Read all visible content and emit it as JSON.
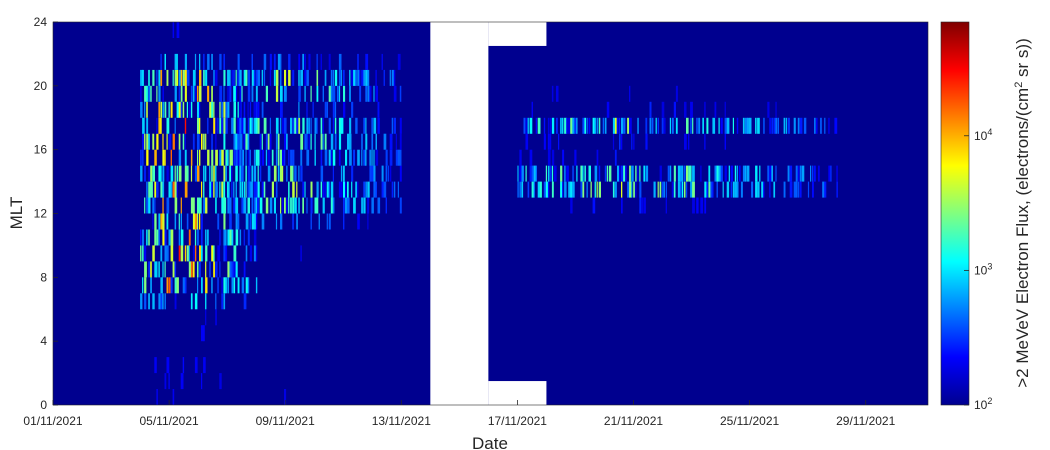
{
  "chart_data": {
    "type": "heatmap",
    "title": "",
    "xlabel": "Date",
    "ylabel": "MLT",
    "x_ticks": [
      "01/11/2021",
      "05/11/2021",
      "09/11/2021",
      "13/11/2021",
      "17/11/2021",
      "21/11/2021",
      "25/11/2021",
      "29/11/2021"
    ],
    "x_range": [
      "01/11/2021",
      "01/12/2021"
    ],
    "y_ticks": [
      0,
      4,
      8,
      12,
      16,
      20,
      24
    ],
    "ylim": [
      0,
      24
    ],
    "no_data_intervals": [
      {
        "start": "14/11/2021",
        "end": "16/11/2021"
      },
      {
        "start": "16/11/2021",
        "end": "18/11/2021",
        "mlt_ranges": [
          [
            0,
            1.5
          ],
          [
            22.5,
            24
          ]
        ]
      }
    ],
    "colorbar": {
      "label_parts": [
        ">2 MeVeV Electron Flux, (electrons/(cm",
        "2",
        " sr s))"
      ],
      "scale": "log",
      "range": [
        100,
        70000
      ],
      "ticks": [
        {
          "value": 100,
          "base": "10",
          "exp": "2"
        },
        {
          "value": 1000,
          "base": "10",
          "exp": "3"
        },
        {
          "value": 10000,
          "base": "10",
          "exp": "4"
        }
      ],
      "colormap": "jet",
      "colors": [
        "#00008f",
        "#0000ff",
        "#0080ff",
        "#00ffff",
        "#80ff80",
        "#ffff00",
        "#ff8000",
        "#ff0000",
        "#800000"
      ]
    },
    "activity_profiles": [
      {
        "start": "04/11/2021",
        "end": "08/11/2021",
        "mlt_peaks": [
          8,
          10,
          12,
          14,
          16,
          18,
          20
        ],
        "peak_flux": 70000
      },
      {
        "start": "07/11/2021",
        "end": "13/11/2021",
        "mlt_peaks": [
          13,
          15,
          17,
          20
        ],
        "peak_flux": 8000
      },
      {
        "start": "17/11/2021",
        "end": "28/11/2021",
        "mlt_bands": [
          [
            13,
            15
          ],
          [
            17,
            18
          ]
        ],
        "peak_flux": 6000
      }
    ]
  }
}
